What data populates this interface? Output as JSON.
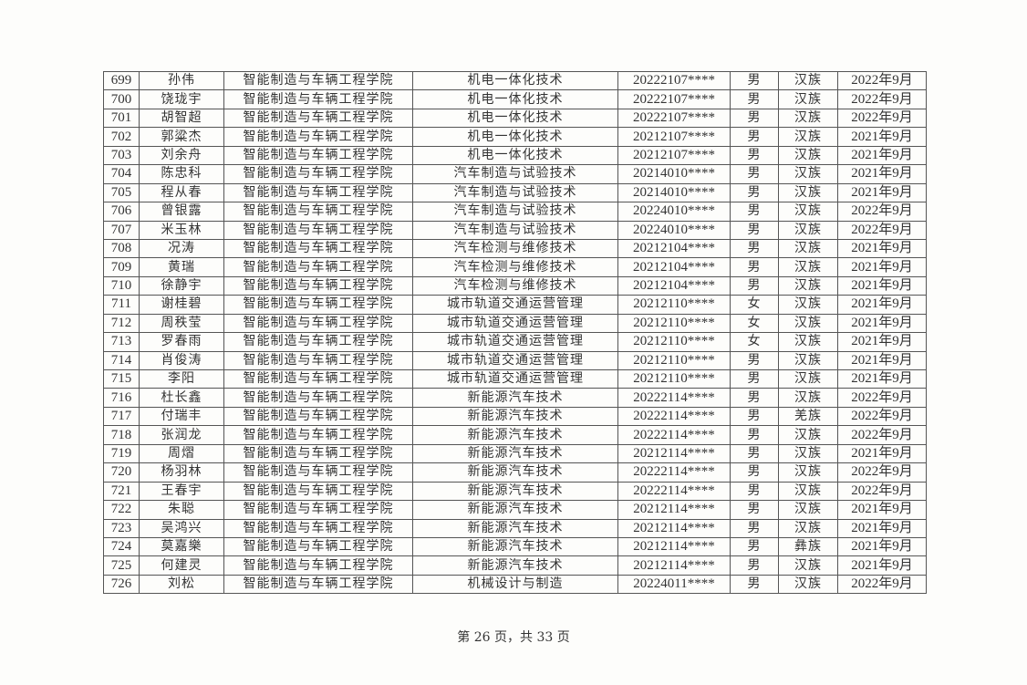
{
  "table": {
    "rows": [
      [
        "699",
        "孙伟",
        "智能制造与车辆工程学院",
        "机电一体化技术",
        "20222107****",
        "男",
        "汉族",
        "2022年9月"
      ],
      [
        "700",
        "饶珑宇",
        "智能制造与车辆工程学院",
        "机电一体化技术",
        "20222107****",
        "男",
        "汉族",
        "2022年9月"
      ],
      [
        "701",
        "胡智超",
        "智能制造与车辆工程学院",
        "机电一体化技术",
        "20222107****",
        "男",
        "汉族",
        "2022年9月"
      ],
      [
        "702",
        "郭粱杰",
        "智能制造与车辆工程学院",
        "机电一体化技术",
        "20212107****",
        "男",
        "汉族",
        "2021年9月"
      ],
      [
        "703",
        "刘余舟",
        "智能制造与车辆工程学院",
        "机电一体化技术",
        "20212107****",
        "男",
        "汉族",
        "2021年9月"
      ],
      [
        "704",
        "陈忠科",
        "智能制造与车辆工程学院",
        "汽车制造与试验技术",
        "20214010****",
        "男",
        "汉族",
        "2021年9月"
      ],
      [
        "705",
        "程从春",
        "智能制造与车辆工程学院",
        "汽车制造与试验技术",
        "20214010****",
        "男",
        "汉族",
        "2021年9月"
      ],
      [
        "706",
        "曾银露",
        "智能制造与车辆工程学院",
        "汽车制造与试验技术",
        "20224010****",
        "男",
        "汉族",
        "2022年9月"
      ],
      [
        "707",
        "米玉林",
        "智能制造与车辆工程学院",
        "汽车制造与试验技术",
        "20224010****",
        "男",
        "汉族",
        "2022年9月"
      ],
      [
        "708",
        "况涛",
        "智能制造与车辆工程学院",
        "汽车检测与维修技术",
        "20212104****",
        "男",
        "汉族",
        "2021年9月"
      ],
      [
        "709",
        "黄瑞",
        "智能制造与车辆工程学院",
        "汽车检测与维修技术",
        "20212104****",
        "男",
        "汉族",
        "2021年9月"
      ],
      [
        "710",
        "徐静宇",
        "智能制造与车辆工程学院",
        "汽车检测与维修技术",
        "20212104****",
        "男",
        "汉族",
        "2021年9月"
      ],
      [
        "711",
        "谢桂碧",
        "智能制造与车辆工程学院",
        "城市轨道交通运营管理",
        "20212110****",
        "女",
        "汉族",
        "2021年9月"
      ],
      [
        "712",
        "周秩莹",
        "智能制造与车辆工程学院",
        "城市轨道交通运营管理",
        "20212110****",
        "女",
        "汉族",
        "2021年9月"
      ],
      [
        "713",
        "罗春雨",
        "智能制造与车辆工程学院",
        "城市轨道交通运营管理",
        "20212110****",
        "女",
        "汉族",
        "2021年9月"
      ],
      [
        "714",
        "肖俊涛",
        "智能制造与车辆工程学院",
        "城市轨道交通运营管理",
        "20212110****",
        "男",
        "汉族",
        "2021年9月"
      ],
      [
        "715",
        "李阳",
        "智能制造与车辆工程学院",
        "城市轨道交通运营管理",
        "20212110****",
        "男",
        "汉族",
        "2021年9月"
      ],
      [
        "716",
        "杜长鑫",
        "智能制造与车辆工程学院",
        "新能源汽车技术",
        "20222114****",
        "男",
        "汉族",
        "2022年9月"
      ],
      [
        "717",
        "付瑞丰",
        "智能制造与车辆工程学院",
        "新能源汽车技术",
        "20222114****",
        "男",
        "羌族",
        "2022年9月"
      ],
      [
        "718",
        "张润龙",
        "智能制造与车辆工程学院",
        "新能源汽车技术",
        "20222114****",
        "男",
        "汉族",
        "2022年9月"
      ],
      [
        "719",
        "周熠",
        "智能制造与车辆工程学院",
        "新能源汽车技术",
        "20212114****",
        "男",
        "汉族",
        "2021年9月"
      ],
      [
        "720",
        "杨羽林",
        "智能制造与车辆工程学院",
        "新能源汽车技术",
        "20222114****",
        "男",
        "汉族",
        "2022年9月"
      ],
      [
        "721",
        "王春宇",
        "智能制造与车辆工程学院",
        "新能源汽车技术",
        "20222114****",
        "男",
        "汉族",
        "2022年9月"
      ],
      [
        "722",
        "朱聪",
        "智能制造与车辆工程学院",
        "新能源汽车技术",
        "20212114****",
        "男",
        "汉族",
        "2021年9月"
      ],
      [
        "723",
        "吴鸿兴",
        "智能制造与车辆工程学院",
        "新能源汽车技术",
        "20212114****",
        "男",
        "汉族",
        "2021年9月"
      ],
      [
        "724",
        "莫嘉樂",
        "智能制造与车辆工程学院",
        "新能源汽车技术",
        "20212114****",
        "男",
        "彝族",
        "2021年9月"
      ],
      [
        "725",
        "何建灵",
        "智能制造与车辆工程学院",
        "新能源汽车技术",
        "20212114****",
        "男",
        "汉族",
        "2021年9月"
      ],
      [
        "726",
        "刘松",
        "智能制造与车辆工程学院",
        "机械设计与制造",
        "20224011****",
        "男",
        "汉族",
        "2022年9月"
      ]
    ]
  },
  "footer": {
    "page_label": "第 26 页，共 33 页"
  }
}
